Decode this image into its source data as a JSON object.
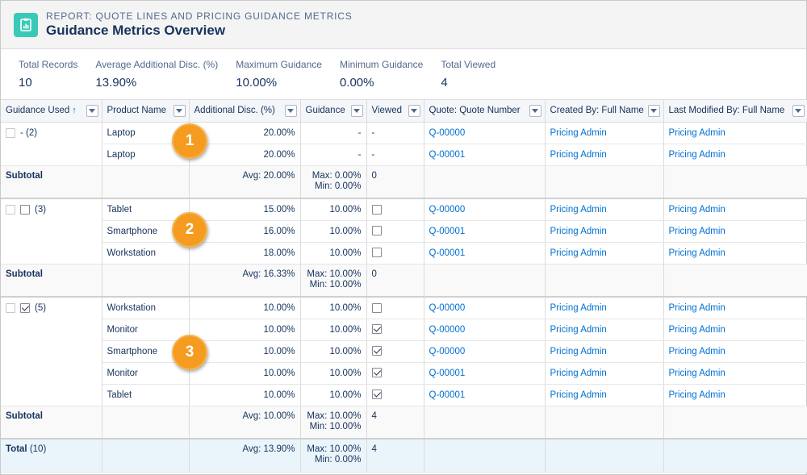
{
  "header": {
    "eyebrow": "REPORT: QUOTE LINES AND PRICING GUIDANCE METRICS",
    "title": "Guidance Metrics Overview",
    "icon": "report-icon",
    "icon_color": "#3bc9b7"
  },
  "summary": [
    {
      "label": "Total Records",
      "value": "10"
    },
    {
      "label": "Average Additional Disc. (%)",
      "value": "13.90%"
    },
    {
      "label": "Maximum Guidance",
      "value": "10.00%"
    },
    {
      "label": "Minimum Guidance",
      "value": "0.00%"
    },
    {
      "label": "Total Viewed",
      "value": "4"
    }
  ],
  "columns": {
    "c0": "Guidance Used",
    "c1": "Product Name",
    "c2": "Additional Disc. (%)",
    "c3": "Guidance",
    "c4": "Viewed",
    "c5": "Quote: Quote Number",
    "c6": "Created By: Full Name",
    "c7": "Last Modified By: Full Name",
    "sort_glyph": "↑"
  },
  "groups": {
    "g1": {
      "label": "- (2)",
      "rows": [
        {
          "product": "Laptop",
          "disc": "20.00%",
          "guidance": "-",
          "viewed": "-",
          "quote": "Q-00000",
          "created": "Pricing Admin",
          "modified": "Pricing Admin"
        },
        {
          "product": "Laptop",
          "disc": "20.00%",
          "guidance": "-",
          "viewed": "-",
          "quote": "Q-00001",
          "created": "Pricing Admin",
          "modified": "Pricing Admin"
        }
      ],
      "subtotal": {
        "label": "Subtotal",
        "avg": "Avg: 20.00%",
        "max": "Max: 0.00%",
        "min": "Min: 0.00%",
        "viewed": "0"
      }
    },
    "g2": {
      "label": "(3)",
      "rows": [
        {
          "product": "Tablet",
          "disc": "15.00%",
          "guidance": "10.00%",
          "quote": "Q-00000",
          "created": "Pricing Admin",
          "modified": "Pricing Admin"
        },
        {
          "product": "Smartphone",
          "disc": "16.00%",
          "guidance": "10.00%",
          "quote": "Q-00001",
          "created": "Pricing Admin",
          "modified": "Pricing Admin"
        },
        {
          "product": "Workstation",
          "disc": "18.00%",
          "guidance": "10.00%",
          "quote": "Q-00001",
          "created": "Pricing Admin",
          "modified": "Pricing Admin"
        }
      ],
      "subtotal": {
        "label": "Subtotal",
        "avg": "Avg: 16.33%",
        "max": "Max: 10.00%",
        "min": "Min: 10.00%",
        "viewed": "0"
      }
    },
    "g3": {
      "label": "(5)",
      "rows": [
        {
          "product": "Workstation",
          "disc": "10.00%",
          "guidance": "10.00%",
          "quote": "Q-00000",
          "created": "Pricing Admin",
          "modified": "Pricing Admin"
        },
        {
          "product": "Monitor",
          "disc": "10.00%",
          "guidance": "10.00%",
          "quote": "Q-00000",
          "created": "Pricing Admin",
          "modified": "Pricing Admin"
        },
        {
          "product": "Smartphone",
          "disc": "10.00%",
          "guidance": "10.00%",
          "quote": "Q-00000",
          "created": "Pricing Admin",
          "modified": "Pricing Admin"
        },
        {
          "product": "Monitor",
          "disc": "10.00%",
          "guidance": "10.00%",
          "quote": "Q-00001",
          "created": "Pricing Admin",
          "modified": "Pricing Admin"
        },
        {
          "product": "Tablet",
          "disc": "10.00%",
          "guidance": "10.00%",
          "quote": "Q-00001",
          "created": "Pricing Admin",
          "modified": "Pricing Admin"
        }
      ],
      "subtotal": {
        "label": "Subtotal",
        "avg": "Avg: 10.00%",
        "max": "Max: 10.00%",
        "min": "Min: 10.00%",
        "viewed": "4"
      }
    }
  },
  "total": {
    "label": "Total",
    "count": "(10)",
    "avg": "Avg: 13.90%",
    "max": "Max: 10.00%",
    "min": "Min: 0.00%",
    "viewed": "4"
  },
  "badges": [
    "1",
    "2",
    "3"
  ],
  "colors": {
    "link": "#0070d2",
    "badge": "#f49b20",
    "total_row": "#eaf5fb"
  }
}
